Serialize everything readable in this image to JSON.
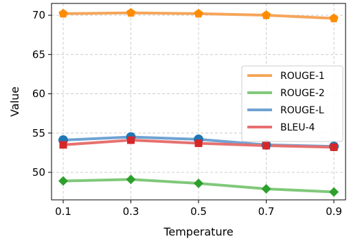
{
  "chart_data": {
    "type": "line",
    "title": "",
    "xlabel": "Temperature",
    "ylabel": "Value",
    "x": [
      0.1,
      0.3,
      0.5,
      0.7,
      0.9
    ],
    "x_tick_labels": [
      "0.1",
      "0.3",
      "0.5",
      "0.7",
      "0.9"
    ],
    "ylim": [
      46.5,
      71.5
    ],
    "y_ticks": [
      50,
      55,
      60,
      65,
      70
    ],
    "grid": true,
    "legend_position": "center-right",
    "series": [
      {
        "name": "ROUGE-1",
        "color": "#f5a55a",
        "marker": "pentagon",
        "values": [
          70.2,
          70.3,
          70.2,
          70.0,
          69.6
        ]
      },
      {
        "name": "ROUGE-2",
        "color": "#80c87a",
        "marker": "diamond",
        "values": [
          48.9,
          49.1,
          48.6,
          47.9,
          47.5
        ]
      },
      {
        "name": "ROUGE-L",
        "color": "#6fa3d2",
        "marker": "circle",
        "values": [
          54.1,
          54.5,
          54.2,
          53.5,
          53.3
        ]
      },
      {
        "name": "BLEU-4",
        "color": "#e6706f",
        "marker": "square",
        "values": [
          53.5,
          54.1,
          53.7,
          53.4,
          53.2
        ]
      }
    ],
    "marker_colors": {
      "ROUGE-1": "#ff8c00",
      "ROUGE-2": "#2ca02c",
      "ROUGE-L": "#1f77b4",
      "BLEU-4": "#d62728"
    }
  }
}
